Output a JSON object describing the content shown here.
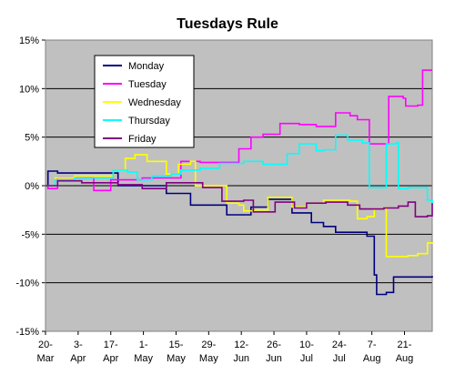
{
  "chart_data": {
    "type": "line",
    "title": "Tuesdays Rule",
    "xlabel": "",
    "ylabel": "",
    "ylim": [
      -15,
      15
    ],
    "y_ticks": [
      "15%",
      "10%",
      "5%",
      "0%",
      "-5%",
      "-10%",
      "-15%"
    ],
    "y_tick_values": [
      15,
      10,
      5,
      0,
      -5,
      -10,
      -15
    ],
    "x_tick_labels": [
      [
        "20-",
        "Mar"
      ],
      [
        "3-",
        "Apr"
      ],
      [
        "17-",
        "Apr"
      ],
      [
        "1-",
        "May"
      ],
      [
        "15-",
        "May"
      ],
      [
        "29-",
        "May"
      ],
      [
        "12-",
        "Jun"
      ],
      [
        "26-",
        "Jun"
      ],
      [
        "10-",
        "Jul"
      ],
      [
        "24-",
        "Jul"
      ],
      [
        "7-",
        "Aug"
      ],
      [
        "21-",
        "Aug"
      ]
    ],
    "x_range_days": [
      0,
      160
    ],
    "grid": true,
    "legend_position": "top-left",
    "plot_background": "#c0c0c0",
    "series": [
      {
        "name": "Monday",
        "color": "#000080",
        "points": [
          [
            0,
            0
          ],
          [
            1,
            1.5
          ],
          [
            5,
            1.3
          ],
          [
            30,
            0
          ],
          [
            50,
            -0.8
          ],
          [
            60,
            -2
          ],
          [
            75,
            -3
          ],
          [
            85,
            -2.2
          ],
          [
            92,
            -1.4
          ],
          [
            102,
            -2.8
          ],
          [
            110,
            -3.8
          ],
          [
            115,
            -4.2
          ],
          [
            120,
            -4.8
          ],
          [
            133,
            -5.2
          ],
          [
            136,
            -9.2
          ],
          [
            137,
            -11.2
          ],
          [
            141,
            -11
          ],
          [
            144,
            -9.4
          ],
          [
            160,
            -9.3
          ]
        ]
      },
      {
        "name": "Tuesday",
        "color": "#ff00ff",
        "points": [
          [
            0,
            0
          ],
          [
            1,
            -0.3
          ],
          [
            5,
            0.8
          ],
          [
            20,
            -0.5
          ],
          [
            27,
            0.6
          ],
          [
            40,
            0.8
          ],
          [
            56,
            2.5
          ],
          [
            64,
            2.4
          ],
          [
            80,
            3.8
          ],
          [
            85,
            5
          ],
          [
            90,
            5.3
          ],
          [
            97,
            6.4
          ],
          [
            105,
            6.3
          ],
          [
            112,
            6.1
          ],
          [
            120,
            7.5
          ],
          [
            126,
            7.2
          ],
          [
            129,
            6.8
          ],
          [
            134,
            4.3
          ],
          [
            141,
            4.3
          ],
          [
            142,
            9.2
          ],
          [
            148,
            9
          ],
          [
            149,
            8.2
          ],
          [
            154,
            8.3
          ],
          [
            156,
            11.9
          ],
          [
            160,
            11.9
          ]
        ]
      },
      {
        "name": "Wednesday",
        "color": "#ffff00",
        "points": [
          [
            0,
            0
          ],
          [
            4,
            0.8
          ],
          [
            12,
            1
          ],
          [
            28,
            1.6
          ],
          [
            33,
            2.8
          ],
          [
            37,
            3.2
          ],
          [
            42,
            2.5
          ],
          [
            50,
            1.2
          ],
          [
            55,
            2.2
          ],
          [
            60,
            2.5
          ],
          [
            62,
            0
          ],
          [
            73,
            0
          ],
          [
            75,
            -1.8
          ],
          [
            80,
            -2
          ],
          [
            82,
            -2.6
          ],
          [
            87,
            -2.5
          ],
          [
            92,
            -1.2
          ],
          [
            100,
            -1.2
          ],
          [
            102,
            -2.2
          ],
          [
            108,
            -1.8
          ],
          [
            115,
            -1.5
          ],
          [
            126,
            -1.6
          ],
          [
            129,
            -3.4
          ],
          [
            133,
            -3.2
          ],
          [
            136,
            -2.4
          ],
          [
            140,
            -2.3
          ],
          [
            141,
            -7.3
          ],
          [
            150,
            -7.2
          ],
          [
            154,
            -7
          ],
          [
            158,
            -5.9
          ],
          [
            160,
            -6
          ]
        ]
      },
      {
        "name": "Thursday",
        "color": "#00ffff",
        "points": [
          [
            0,
            0
          ],
          [
            4,
            0.6
          ],
          [
            12,
            0.8
          ],
          [
            28,
            1.6
          ],
          [
            34,
            1.4
          ],
          [
            38,
            0.6
          ],
          [
            44,
            1
          ],
          [
            52,
            1.2
          ],
          [
            56,
            1.6
          ],
          [
            64,
            1.8
          ],
          [
            72,
            2.3
          ],
          [
            82,
            2.5
          ],
          [
            90,
            2.2
          ],
          [
            100,
            3.3
          ],
          [
            105,
            4.3
          ],
          [
            112,
            3.6
          ],
          [
            115,
            3.7
          ],
          [
            120,
            5.2
          ],
          [
            125,
            4.7
          ],
          [
            131,
            4.4
          ],
          [
            134,
            -0.2
          ],
          [
            140,
            -0.2
          ],
          [
            141,
            4.3
          ],
          [
            145,
            4.4
          ],
          [
            146,
            -0.3
          ],
          [
            150,
            -0.2
          ],
          [
            158,
            -1.5
          ],
          [
            160,
            -2
          ]
        ]
      },
      {
        "name": "Friday",
        "color": "#800080",
        "points": [
          [
            0,
            0
          ],
          [
            5,
            0.5
          ],
          [
            15,
            0.3
          ],
          [
            30,
            0.1
          ],
          [
            40,
            -0.3
          ],
          [
            50,
            0.3
          ],
          [
            65,
            -0.2
          ],
          [
            73,
            -1.6
          ],
          [
            82,
            -1.5
          ],
          [
            86,
            -2.7
          ],
          [
            95,
            -1.7
          ],
          [
            103,
            -2.3
          ],
          [
            108,
            -1.8
          ],
          [
            116,
            -1.7
          ],
          [
            125,
            -2
          ],
          [
            130,
            -2.4
          ],
          [
            140,
            -2.3
          ],
          [
            146,
            -2.1
          ],
          [
            150,
            -1.7
          ],
          [
            153,
            -3.2
          ],
          [
            158,
            -3.1
          ],
          [
            160,
            -1.8
          ]
        ]
      }
    ]
  }
}
